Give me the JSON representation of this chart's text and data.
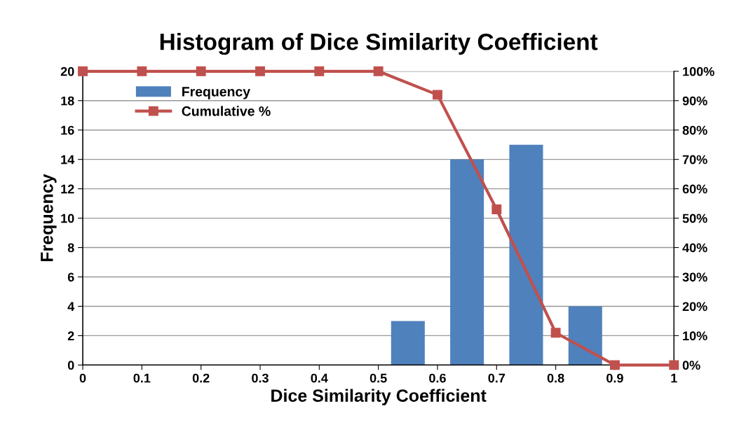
{
  "chart_data": {
    "type": "histogram",
    "title": "Histogram of Dice Similarity Coefficient",
    "xlabel": "Dice Similarity Coefficient",
    "ylabel": "Frequency",
    "bins": [
      0,
      0.1,
      0.2,
      0.3,
      0.4,
      0.5,
      0.6,
      0.7,
      0.8,
      0.9,
      1
    ],
    "series": [
      {
        "name": "Frequency",
        "color": "#4f81bd",
        "values": [
          0,
          0,
          0,
          0,
          0,
          3,
          14,
          15,
          4,
          0
        ]
      },
      {
        "name": "Cumulative %",
        "type": "line",
        "axis": "y2",
        "color": "#c0504d",
        "x": [
          0,
          0.1,
          0.2,
          0.3,
          0.4,
          0.5,
          0.6,
          0.7,
          0.8,
          0.9,
          1
        ],
        "values": [
          100,
          100,
          100,
          100,
          100,
          100,
          92,
          53,
          11,
          0,
          0
        ]
      }
    ],
    "xlim": [
      0,
      1
    ],
    "xticks": [
      0,
      0.1,
      0.2,
      0.3,
      0.4,
      0.5,
      0.6,
      0.7,
      0.8,
      0.9,
      1
    ],
    "ylim": [
      0,
      20
    ],
    "yticks": [
      0,
      2,
      4,
      6,
      8,
      10,
      12,
      14,
      16,
      18,
      20
    ],
    "y2lim": [
      0,
      100
    ],
    "y2ticks": [
      {
        "value": 0,
        "label": "0%"
      },
      {
        "value": 10,
        "label": "10%"
      },
      {
        "value": 20,
        "label": "20%"
      },
      {
        "value": 30,
        "label": "30%"
      },
      {
        "value": 40,
        "label": "40%"
      },
      {
        "value": 50,
        "label": "50%"
      },
      {
        "value": 60,
        "label": "60%"
      },
      {
        "value": 70,
        "label": "70%"
      },
      {
        "value": 80,
        "label": "80%"
      },
      {
        "value": 90,
        "label": "90%"
      },
      {
        "value": 100,
        "label": "100%"
      }
    ],
    "grid": "y",
    "legend": "top left",
    "marker": "square",
    "line_style": "solid"
  }
}
